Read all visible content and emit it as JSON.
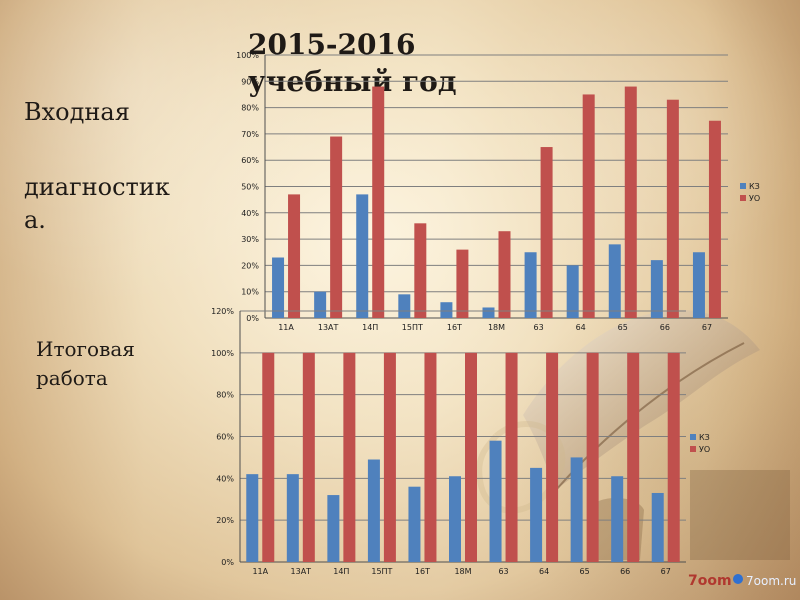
{
  "slide": {
    "title": "2015-2016 учебный год",
    "top_label_line1": "Входная",
    "top_label_line2": "диагностик",
    "top_label_line3": "а.",
    "bottom_label": "Итоговая работа",
    "logo_text_left": "7oom",
    "logo_text_right": "7oom.ru",
    "colors": {
      "kz": "#4f81bd",
      "uo": "#c0504d",
      "grid": "#7f7f7f",
      "axis": "#4f4f4f",
      "text": "#1f1a16"
    }
  },
  "chart_data": [
    {
      "type": "bar",
      "categories": [
        "11А",
        "13АТ",
        "14П",
        "15ПТ",
        "16Т",
        "18М",
        "63",
        "64",
        "65",
        "66",
        "67"
      ],
      "series": [
        {
          "name": "КЗ",
          "values": [
            23,
            10,
            47,
            9,
            6,
            4,
            25,
            20,
            28,
            22,
            25
          ]
        },
        {
          "name": "УО",
          "values": [
            47,
            69,
            88,
            36,
            26,
            33,
            65,
            85,
            88,
            83,
            75
          ]
        }
      ],
      "ylim": [
        0,
        100
      ],
      "yticks": [
        "0%",
        "10%",
        "20%",
        "30%",
        "40%",
        "50%",
        "60%",
        "70%",
        "80%",
        "90%",
        "100%"
      ],
      "grid": true,
      "legend": "right"
    },
    {
      "type": "bar",
      "categories": [
        "11А",
        "13АТ",
        "14П",
        "15ПТ",
        "16Т",
        "18М",
        "63",
        "64",
        "65",
        "66",
        "67"
      ],
      "series": [
        {
          "name": "КЗ",
          "values": [
            42,
            42,
            32,
            49,
            36,
            41,
            58,
            45,
            50,
            41,
            33
          ]
        },
        {
          "name": "УО",
          "values": [
            100,
            100,
            100,
            100,
            100,
            100,
            100,
            100,
            100,
            100,
            100
          ]
        }
      ],
      "ylim": [
        0,
        120
      ],
      "yticks": [
        "0%",
        "20%",
        "40%",
        "60%",
        "80%",
        "100%",
        "120%"
      ],
      "grid": true,
      "legend": "right"
    }
  ]
}
